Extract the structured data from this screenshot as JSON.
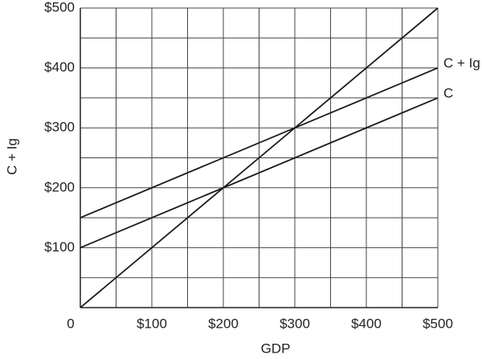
{
  "chart_data": {
    "type": "line",
    "xlabel": "GDP",
    "ylabel": "C + Ig",
    "x": [
      0,
      500
    ],
    "series": [
      {
        "color": "#1a1a1a",
        "values": [
          0,
          500
        ]
      },
      {
        "name": "C + Ig",
        "color": "#1a1a1a",
        "values": [
          150,
          400
        ]
      },
      {
        "name": "C",
        "color": "#1a1a1a",
        "values": [
          100,
          350
        ]
      }
    ],
    "xlim": [
      0,
      500
    ],
    "ylim": [
      0,
      500
    ],
    "xticks": [
      0,
      {
        "value": 100,
        "label": "$100"
      },
      {
        "value": 200,
        "label": "$200"
      },
      {
        "value": 300,
        "label": "$300"
      },
      {
        "value": 400,
        "label": "$400"
      },
      {
        "value": 500,
        "label": "$500"
      }
    ],
    "yticks": [
      {
        "value": 100,
        "label": "$100"
      },
      {
        "value": 200,
        "label": "$200"
      },
      {
        "value": 300,
        "label": "$300"
      },
      {
        "value": 400,
        "label": "$400"
      },
      {
        "value": 500,
        "label": "$500"
      }
    ],
    "xminor": [
      50,
      150,
      250,
      350,
      450
    ],
    "yminor": [
      50,
      150,
      250,
      350,
      450
    ],
    "grid": true
  }
}
